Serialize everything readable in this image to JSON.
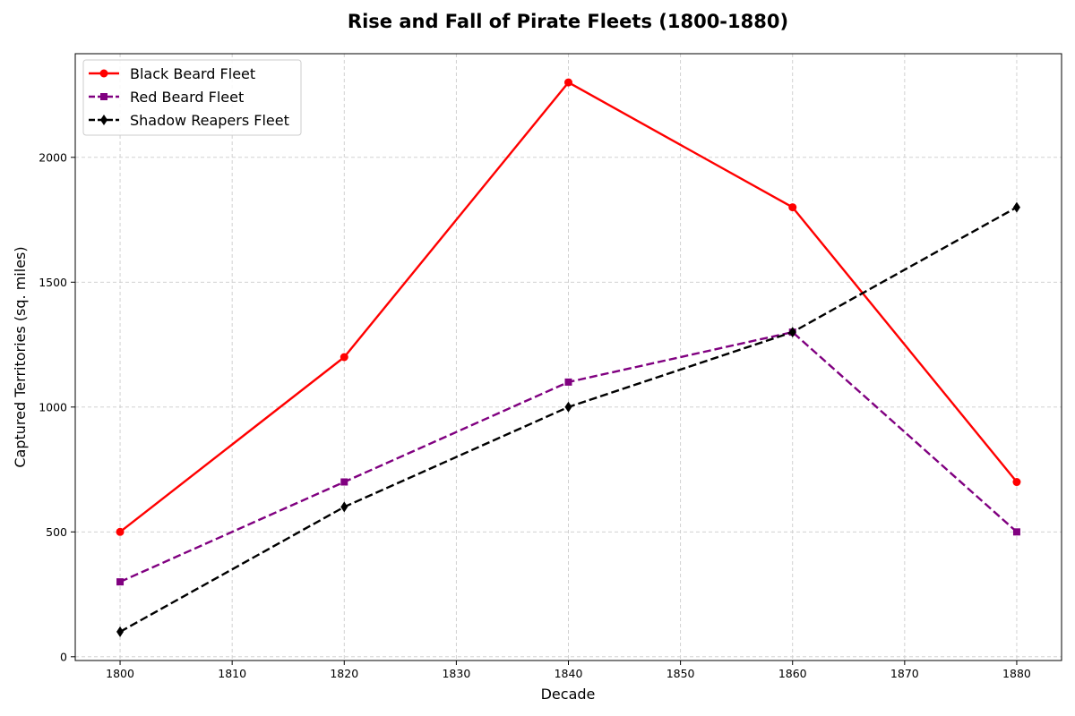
{
  "chart_data": {
    "type": "line",
    "title": "Rise and Fall of Pirate Fleets (1800-1880)",
    "xlabel": "Decade",
    "ylabel": "Captured Territories (sq. miles)",
    "x": [
      1800,
      1820,
      1840,
      1860,
      1880
    ],
    "xlim": [
      1796,
      1884
    ],
    "ylim": [
      -15,
      2415
    ],
    "xticks": [
      1800,
      1810,
      1820,
      1830,
      1840,
      1850,
      1860,
      1870,
      1880
    ],
    "yticks": [
      0,
      500,
      1000,
      1500,
      2000
    ],
    "grid": true,
    "legend_position": "top-left",
    "series": [
      {
        "name": "Black Beard Fleet",
        "values": [
          500,
          1200,
          2300,
          1800,
          700
        ],
        "color": "#ff0000",
        "line_style": "solid",
        "marker": "circle"
      },
      {
        "name": "Red Beard Fleet",
        "values": [
          300,
          700,
          1100,
          1300,
          500
        ],
        "color": "#800080",
        "line_style": "dashed",
        "marker": "square"
      },
      {
        "name": "Shadow Reapers Fleet",
        "values": [
          100,
          600,
          1000,
          1300,
          1800
        ],
        "color": "#000000",
        "line_style": "dashed",
        "marker": "diamond"
      }
    ]
  }
}
